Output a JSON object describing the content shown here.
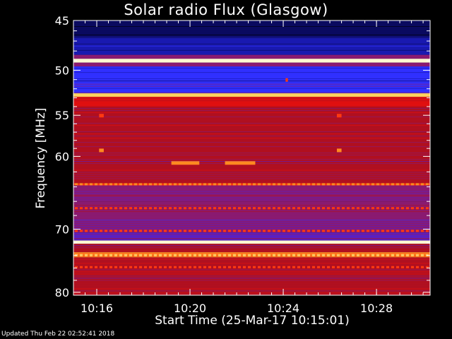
{
  "chart_data": {
    "type": "heatmap",
    "title": "Solar radio Flux (Glasgow)",
    "xlabel": "Start Time (25-Mar-17 10:15:01)",
    "ylabel": "Frequency [MHz]",
    "x_ticks": [
      "10:16",
      "10:20",
      "10:24",
      "10:28"
    ],
    "x_tick_minutes": [
      16,
      20,
      24,
      28
    ],
    "x_range_minutes": [
      15.0,
      30.3
    ],
    "y_ticks": [
      45,
      50,
      55,
      60,
      70,
      80
    ],
    "y_scale": "log",
    "y_range_mhz": [
      45,
      80.5
    ],
    "colormap": [
      "#000010",
      "#0a0a60",
      "#1a1ab0",
      "#3030ff",
      "#5a20c0",
      "#8a1a70",
      "#b01020",
      "#e01010",
      "#ff3a10",
      "#ff8a20",
      "#ffd060",
      "#fff8d0"
    ],
    "frequency_bands": [
      {
        "f0": 45.0,
        "f1": 46.7,
        "level": 0.12
      },
      {
        "f0": 46.7,
        "f1": 48.4,
        "level": 0.16
      },
      {
        "f0": 48.4,
        "f1": 48.8,
        "level": 0.45
      },
      {
        "f0": 48.8,
        "f1": 49.2,
        "level": 0.98
      },
      {
        "f0": 49.2,
        "f1": 49.6,
        "level": 0.45
      },
      {
        "f0": 49.6,
        "f1": 51.3,
        "level": 0.24
      },
      {
        "f0": 51.3,
        "f1": 52.5,
        "level": 0.3
      },
      {
        "f0": 52.5,
        "f1": 52.9,
        "level": 0.9
      },
      {
        "f0": 52.9,
        "f1": 54.0,
        "level": 0.6
      },
      {
        "f0": 54.0,
        "f1": 57.0,
        "level": 0.55
      },
      {
        "f0": 57.0,
        "f1": 61.0,
        "level": 0.52
      },
      {
        "f0": 61.0,
        "f1": 63.5,
        "level": 0.5
      },
      {
        "f0": 63.5,
        "f1": 63.8,
        "level": 0.75
      },
      {
        "f0": 63.8,
        "f1": 66.0,
        "level": 0.45
      },
      {
        "f0": 66.0,
        "f1": 70.5,
        "level": 0.42
      },
      {
        "f0": 70.5,
        "f1": 71.7,
        "level": 0.4
      },
      {
        "f0": 71.7,
        "f1": 72.2,
        "level": 1.0
      },
      {
        "f0": 72.2,
        "f1": 73.5,
        "level": 0.5
      },
      {
        "f0": 73.5,
        "f1": 74.3,
        "level": 0.78
      },
      {
        "f0": 74.3,
        "f1": 80.5,
        "level": 0.52
      }
    ],
    "bursts": [
      {
        "t0": 19.2,
        "t1": 20.4,
        "f": 60.8,
        "level": 0.82
      },
      {
        "t0": 21.5,
        "t1": 22.8,
        "f": 60.8,
        "level": 0.85
      },
      {
        "t0": 16.1,
        "t1": 16.3,
        "f": 55.0,
        "level": 0.75
      },
      {
        "t0": 26.3,
        "t1": 26.5,
        "f": 55.0,
        "level": 0.75
      },
      {
        "t0": 16.1,
        "t1": 16.3,
        "f": 59.2,
        "level": 0.8
      },
      {
        "t0": 26.3,
        "t1": 26.5,
        "f": 59.2,
        "level": 0.8
      },
      {
        "t0": 24.1,
        "t1": 24.2,
        "f": 51.0,
        "level": 0.7
      }
    ],
    "grid": false
  },
  "footer": {
    "updated": "Updated Thu Feb 22 02:52:41 2018"
  }
}
